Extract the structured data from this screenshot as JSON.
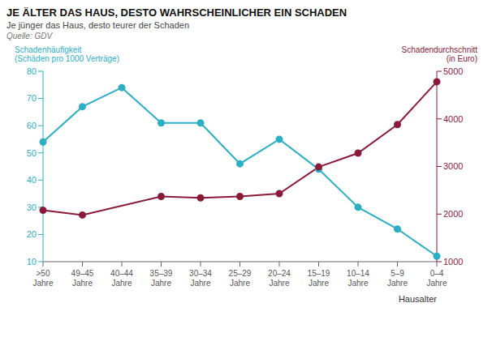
{
  "chart_data": {
    "type": "line",
    "title": "JE ÄLTER DAS HAUS, DESTO WAHRSCHEINLICHER EIN SCHADEN",
    "subtitle": "Je jünger das Haus, desto teurer der Schaden",
    "source": "Quelle: GDV",
    "x_label": "Hausalter",
    "categories": [
      ">50\nJahre",
      "49–45\nJahre",
      "40–44\nJahre",
      "35–39\nJahre",
      "30–34\nJahre",
      "25–29\nJahre",
      "20–24\nJahre",
      "15–19\nJahre",
      "10–14\nJahre",
      "5–9\nJahre",
      "0–4\nJahre"
    ],
    "series": [
      {
        "name": "Schadenhäufigkeit\n(Schäden pro 1000 Verträge)",
        "color": "#2bafc5",
        "marker": "circle",
        "values": [
          54,
          67,
          74,
          61,
          61,
          46,
          55,
          44,
          30,
          22,
          12
        ]
      },
      {
        "name": "Schadendurchschnitt\n(in Euro)",
        "color": "#8b1a3a",
        "marker": "circle",
        "axis": "y2",
        "values": [
          2080,
          1980,
          null,
          2370,
          2340,
          2370,
          2430,
          2990,
          3280,
          3880,
          4780
        ]
      }
    ],
    "ylim": [
      10,
      80
    ],
    "yticks": [
      10,
      20,
      30,
      40,
      50,
      60,
      70,
      80
    ],
    "y2lim": [
      1000,
      5000
    ],
    "y2ticks": [
      1000,
      2000,
      3000,
      4000,
      5000
    ],
    "grid": false
  }
}
